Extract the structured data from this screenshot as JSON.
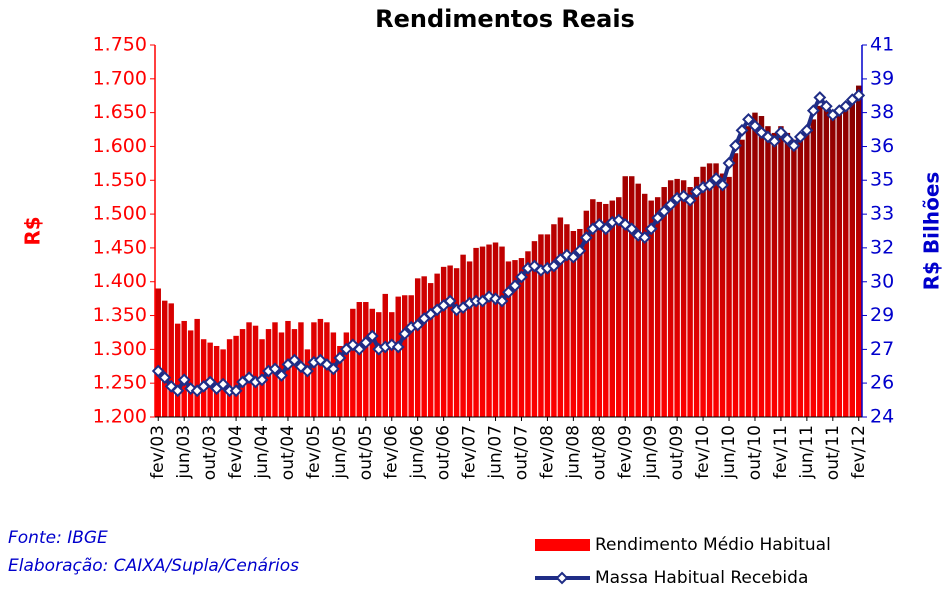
{
  "chart_data": {
    "type": "bar-line",
    "title": "Rendimentos Reais",
    "ylabel": "R$",
    "y2label": "R$ Bilhões",
    "notes": [
      "Fonte: IBGE",
      "Elaboração: CAIXA/Supla/Cenários"
    ],
    "legend": "bottom-right",
    "categories": [
      "fev/03",
      null,
      null,
      null,
      "jun/03",
      null,
      null,
      null,
      "out/03",
      null,
      null,
      null,
      "fev/04",
      null,
      null,
      null,
      "jun/04",
      null,
      null,
      null,
      "out/04",
      null,
      null,
      null,
      "fev/05",
      null,
      null,
      null,
      "jun/05",
      null,
      null,
      null,
      "out/05",
      null,
      null,
      null,
      "fev/06",
      null,
      null,
      null,
      "jun/06",
      null,
      null,
      null,
      "out/06",
      null,
      null,
      null,
      "fev/07",
      null,
      null,
      null,
      "jun/07",
      null,
      null,
      null,
      "out/07",
      null,
      null,
      null,
      "fev/08",
      null,
      null,
      null,
      "jun/08",
      null,
      null,
      null,
      "out/08",
      null,
      null,
      null,
      "fev/09",
      null,
      null,
      null,
      "jun/09",
      null,
      null,
      null,
      "out/09",
      null,
      null,
      null,
      "fev/10",
      null,
      null,
      null,
      "jun/10",
      null,
      null,
      null,
      "out/10",
      null,
      null,
      null,
      "fev/11",
      null,
      null,
      null,
      "jun/11",
      null,
      null,
      null,
      "out/11",
      null,
      null,
      null,
      "fev/12"
    ],
    "series": [
      {
        "name": "Rendimento Médio Habitual",
        "type": "bar",
        "color": "#ff0000",
        "values": [
          1390,
          1372,
          1368,
          1338,
          1342,
          1328,
          1345,
          1315,
          1310,
          1305,
          1300,
          1315,
          1320,
          1330,
          1340,
          1335,
          1315,
          1330,
          1340,
          1325,
          1342,
          1330,
          1340,
          1300,
          1340,
          1345,
          1340,
          1325,
          1305,
          1325,
          1360,
          1370,
          1370,
          1360,
          1355,
          1382,
          1355,
          1378,
          1380,
          1380,
          1405,
          1408,
          1398,
          1412,
          1422,
          1424,
          1420,
          1440,
          1430,
          1450,
          1452,
          1455,
          1458,
          1452,
          1430,
          1432,
          1435,
          1445,
          1460,
          1470,
          1470,
          1485,
          1495,
          1485,
          1475,
          1478,
          1505,
          1522,
          1518,
          1515,
          1520,
          1525,
          1556,
          1556,
          1545,
          1530,
          1520,
          1525,
          1540,
          1550,
          1552,
          1550,
          1540,
          1555,
          1570,
          1575,
          1575,
          1560,
          1555,
          1590,
          1610,
          1630,
          1650,
          1645,
          1630,
          1620,
          1630,
          1620,
          1610,
          1615,
          1620,
          1640,
          1660,
          1655,
          1650,
          1650,
          1665,
          1670,
          1690
        ]
      },
      {
        "name": "Massa Habitual Recebida",
        "type": "line",
        "axis": "y2",
        "color": "#1f2d86",
        "values": [
          26.1,
          25.8,
          25.4,
          25.2,
          25.7,
          25.3,
          25.2,
          25.4,
          25.6,
          25.3,
          25.5,
          25.2,
          25.2,
          25.6,
          25.8,
          25.6,
          25.7,
          26.1,
          26.2,
          25.9,
          26.4,
          26.6,
          26.3,
          26.1,
          26.5,
          26.6,
          26.4,
          26.2,
          26.7,
          27.1,
          27.3,
          27.1,
          27.4,
          27.7,
          27.1,
          27.2,
          27.3,
          27.2,
          27.8,
          28.1,
          28.2,
          28.5,
          28.7,
          28.9,
          29.1,
          29.3,
          28.9,
          29.0,
          29.2,
          29.3,
          29.3,
          29.5,
          29.4,
          29.3,
          29.7,
          30.0,
          30.4,
          30.8,
          30.9,
          30.7,
          30.8,
          30.9,
          31.2,
          31.4,
          31.3,
          31.6,
          32.2,
          32.6,
          32.8,
          32.6,
          32.9,
          33.0,
          32.8,
          32.6,
          32.3,
          32.2,
          32.6,
          33.1,
          33.4,
          33.7,
          34.0,
          34.1,
          33.9,
          34.3,
          34.5,
          34.6,
          34.9,
          34.6,
          35.6,
          36.4,
          37.1,
          37.6,
          37.3,
          37.0,
          36.8,
          36.6,
          37.0,
          36.7,
          36.4,
          36.8,
          37.1,
          38.0,
          38.6,
          38.2,
          37.8,
          38.0,
          38.2,
          38.5,
          38.7
        ]
      }
    ],
    "ylim": [
      1200,
      1750
    ],
    "yticks": [
      {
        "value": 1200,
        "label": "1.200"
      },
      {
        "value": 1250,
        "label": "1.250"
      },
      {
        "value": 1300,
        "label": "1.300"
      },
      {
        "value": 1350,
        "label": "1.350"
      },
      {
        "value": 1400,
        "label": "1.400"
      },
      {
        "value": 1450,
        "label": "1.450"
      },
      {
        "value": 1500,
        "label": "1.500"
      },
      {
        "value": 1550,
        "label": "1.550"
      },
      {
        "value": 1600,
        "label": "1.600"
      },
      {
        "value": 1650,
        "label": "1.650"
      },
      {
        "value": 1700,
        "label": "1.700"
      },
      {
        "value": 1750,
        "label": "1.750"
      }
    ],
    "y2lim": [
      24,
      41
    ],
    "y2ticks": [
      24,
      {
        "value": 25.55,
        "label": "26"
      },
      {
        "value": 27.09,
        "label": "27"
      },
      {
        "value": 28.64,
        "label": "29"
      },
      {
        "value": 30.18,
        "label": "30"
      },
      {
        "value": 31.73,
        "label": "32"
      },
      {
        "value": 33.27,
        "label": "33"
      },
      {
        "value": 34.82,
        "label": "35"
      },
      {
        "value": 36.36,
        "label": "36"
      },
      {
        "value": 37.91,
        "label": "38"
      },
      {
        "value": 39.45,
        "label": "39"
      },
      41
    ]
  }
}
